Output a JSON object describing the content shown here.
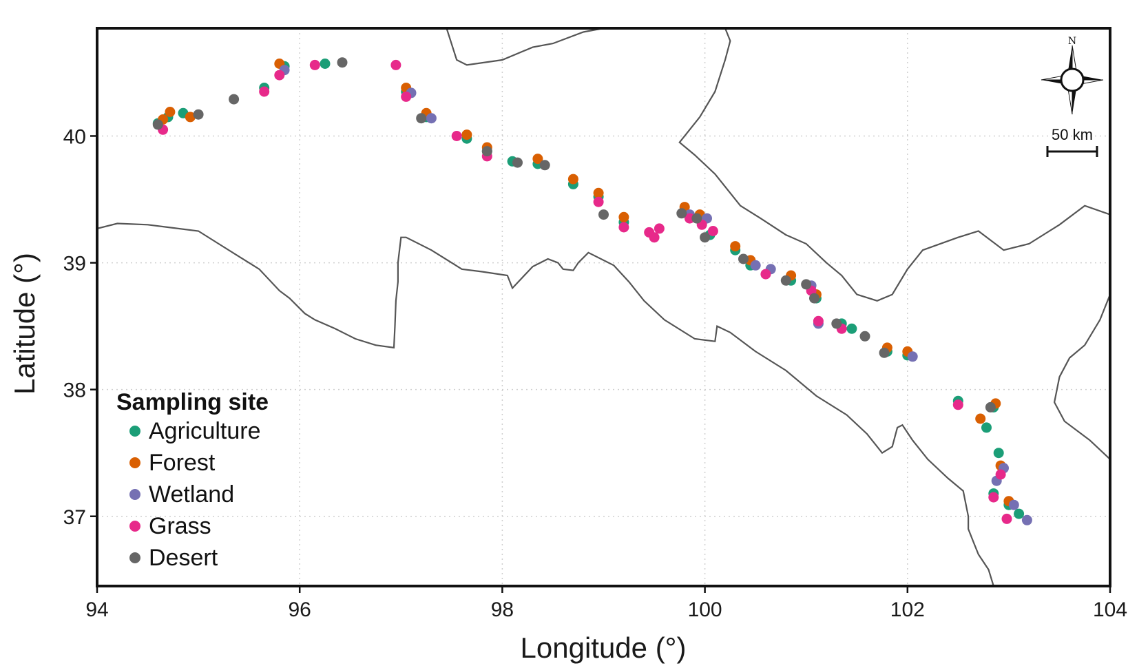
{
  "axes": {
    "xlabel": "Longitude (°)",
    "ylabel": "Latitude (°)",
    "xlim": [
      94,
      104
    ],
    "ylim": [
      36.45,
      40.85
    ],
    "xticks": [
      94,
      96,
      98,
      100,
      102,
      104
    ],
    "yticks": [
      37,
      38,
      39,
      40
    ],
    "grid": "on"
  },
  "legend": {
    "title": "Sampling site",
    "placement": "bottom-left",
    "items": [
      {
        "label": "Agriculture",
        "color": "#1b9e77"
      },
      {
        "label": "Forest",
        "color": "#d95f02"
      },
      {
        "label": "Wetland",
        "color": "#7570b3"
      },
      {
        "label": "Grass",
        "color": "#e7298a"
      },
      {
        "label": "Desert",
        "color": "#666666"
      }
    ]
  },
  "scale_bar": {
    "label": "50 km"
  },
  "north_arrow": {
    "label": "N",
    "icon": "compass-rose-icon"
  },
  "boundaries": [
    [
      [
        94.0,
        39.27
      ],
      [
        94.2,
        39.31
      ],
      [
        94.5,
        39.3
      ],
      [
        94.7,
        39.28
      ],
      [
        95.0,
        39.25
      ],
      [
        95.2,
        39.15
      ],
      [
        95.4,
        39.05
      ],
      [
        95.6,
        38.95
      ],
      [
        95.8,
        38.78
      ],
      [
        95.9,
        38.72
      ],
      [
        96.05,
        38.6
      ],
      [
        96.15,
        38.55
      ],
      [
        96.35,
        38.48
      ],
      [
        96.55,
        38.4
      ],
      [
        96.75,
        38.35
      ],
      [
        96.93,
        38.33
      ],
      [
        96.94,
        38.5
      ],
      [
        96.95,
        38.7
      ],
      [
        96.97,
        38.85
      ],
      [
        96.97,
        39.0
      ],
      [
        97.0,
        39.2
      ],
      [
        97.05,
        39.2
      ],
      [
        97.3,
        39.1
      ],
      [
        97.5,
        39.0
      ],
      [
        97.6,
        38.95
      ],
      [
        97.8,
        38.93
      ],
      [
        98.05,
        38.9
      ],
      [
        98.1,
        38.8
      ],
      [
        98.3,
        38.97
      ],
      [
        98.45,
        39.03
      ],
      [
        98.55,
        39.0
      ],
      [
        98.6,
        38.95
      ],
      [
        98.7,
        38.94
      ],
      [
        98.75,
        39.0
      ],
      [
        98.85,
        39.08
      ],
      [
        99.1,
        38.98
      ],
      [
        99.25,
        38.85
      ],
      [
        99.4,
        38.7
      ],
      [
        99.6,
        38.55
      ],
      [
        99.9,
        38.4
      ],
      [
        100.1,
        38.38
      ],
      [
        100.12,
        38.5
      ],
      [
        100.25,
        38.45
      ],
      [
        100.5,
        38.3
      ],
      [
        100.8,
        38.15
      ],
      [
        101.1,
        37.95
      ],
      [
        101.4,
        37.8
      ],
      [
        101.6,
        37.65
      ],
      [
        101.75,
        37.5
      ],
      [
        101.85,
        37.55
      ],
      [
        101.9,
        37.7
      ],
      [
        101.95,
        37.72
      ],
      [
        102.05,
        37.6
      ],
      [
        102.2,
        37.45
      ],
      [
        102.4,
        37.3
      ],
      [
        102.55,
        37.2
      ],
      [
        102.6,
        37.0
      ],
      [
        102.6,
        36.9
      ],
      [
        102.65,
        36.8
      ],
      [
        102.7,
        36.7
      ],
      [
        102.8,
        36.58
      ],
      [
        102.85,
        36.45
      ]
    ],
    [
      [
        97.45,
        40.85
      ],
      [
        97.55,
        40.6
      ],
      [
        97.65,
        40.56
      ],
      [
        98.0,
        40.6
      ],
      [
        98.3,
        40.7
      ],
      [
        98.5,
        40.73
      ],
      [
        98.8,
        40.82
      ],
      [
        99.0,
        40.85
      ]
    ],
    [
      [
        100.2,
        40.85
      ],
      [
        100.25,
        40.75
      ],
      [
        100.2,
        40.6
      ],
      [
        100.1,
        40.35
      ],
      [
        99.95,
        40.15
      ],
      [
        99.85,
        40.05
      ],
      [
        99.75,
        39.95
      ],
      [
        99.9,
        39.85
      ],
      [
        100.1,
        39.7
      ],
      [
        100.35,
        39.45
      ],
      [
        100.55,
        39.35
      ],
      [
        100.8,
        39.22
      ],
      [
        101.0,
        39.15
      ],
      [
        101.2,
        39.0
      ],
      [
        101.35,
        38.9
      ],
      [
        101.5,
        38.75
      ],
      [
        101.7,
        38.7
      ],
      [
        101.85,
        38.75
      ],
      [
        102.0,
        38.95
      ],
      [
        102.15,
        39.1
      ],
      [
        102.5,
        39.2
      ],
      [
        102.7,
        39.25
      ],
      [
        102.95,
        39.1
      ],
      [
        103.2,
        39.15
      ],
      [
        103.5,
        39.3
      ],
      [
        103.75,
        39.45
      ],
      [
        104.0,
        39.38
      ]
    ],
    [
      [
        104.0,
        37.45
      ],
      [
        103.8,
        37.6
      ],
      [
        103.55,
        37.75
      ],
      [
        103.45,
        37.9
      ],
      [
        103.5,
        38.1
      ],
      [
        103.6,
        38.25
      ],
      [
        103.75,
        38.35
      ],
      [
        103.9,
        38.55
      ],
      [
        104.0,
        38.75
      ]
    ]
  ],
  "chart_data": {
    "type": "scatter",
    "xlabel": "Longitude (°)",
    "ylabel": "Latitude (°)",
    "xlim": [
      94,
      104
    ],
    "ylim": [
      36.45,
      40.85
    ],
    "series": [
      {
        "name": "Agriculture",
        "color": "#1b9e77",
        "points": [
          [
            94.6,
            40.1
          ],
          [
            94.7,
            40.15
          ],
          [
            94.85,
            40.18
          ],
          [
            95.65,
            40.38
          ],
          [
            95.85,
            40.55
          ],
          [
            96.25,
            40.57
          ],
          [
            97.05,
            40.35
          ],
          [
            97.25,
            40.15
          ],
          [
            97.65,
            39.98
          ],
          [
            97.85,
            39.88
          ],
          [
            98.1,
            39.8
          ],
          [
            98.35,
            39.78
          ],
          [
            98.7,
            39.62
          ],
          [
            98.95,
            39.52
          ],
          [
            99.2,
            39.32
          ],
          [
            100.05,
            39.22
          ],
          [
            100.3,
            39.1
          ],
          [
            100.45,
            38.98
          ],
          [
            100.85,
            38.86
          ],
          [
            101.1,
            38.72
          ],
          [
            101.35,
            38.52
          ],
          [
            101.45,
            38.48
          ],
          [
            101.8,
            38.3
          ],
          [
            102.0,
            38.27
          ],
          [
            102.5,
            37.91
          ],
          [
            102.78,
            37.7
          ],
          [
            102.85,
            37.86
          ],
          [
            102.9,
            37.5
          ],
          [
            102.85,
            37.18
          ],
          [
            103.0,
            37.09
          ],
          [
            103.1,
            37.02
          ]
        ]
      },
      {
        "name": "Forest",
        "color": "#d95f02",
        "points": [
          [
            94.65,
            40.13
          ],
          [
            94.72,
            40.19
          ],
          [
            94.92,
            40.15
          ],
          [
            95.8,
            40.57
          ],
          [
            97.05,
            40.38
          ],
          [
            97.25,
            40.18
          ],
          [
            97.65,
            40.01
          ],
          [
            97.85,
            39.91
          ],
          [
            98.35,
            39.82
          ],
          [
            98.7,
            39.66
          ],
          [
            98.95,
            39.55
          ],
          [
            99.2,
            39.36
          ],
          [
            99.8,
            39.44
          ],
          [
            99.95,
            39.38
          ],
          [
            100.3,
            39.13
          ],
          [
            100.45,
            39.02
          ],
          [
            100.85,
            38.9
          ],
          [
            101.1,
            38.75
          ],
          [
            101.8,
            38.33
          ],
          [
            102.0,
            38.3
          ],
          [
            102.72,
            37.77
          ],
          [
            102.87,
            37.89
          ],
          [
            102.92,
            37.4
          ],
          [
            103.0,
            37.12
          ]
        ]
      },
      {
        "name": "Wetland",
        "color": "#7570b3",
        "points": [
          [
            95.85,
            40.52
          ],
          [
            97.1,
            40.34
          ],
          [
            97.3,
            40.14
          ],
          [
            99.85,
            39.38
          ],
          [
            100.02,
            39.35
          ],
          [
            100.5,
            38.98
          ],
          [
            100.65,
            38.95
          ],
          [
            101.05,
            38.82
          ],
          [
            101.12,
            38.52
          ],
          [
            102.05,
            38.26
          ],
          [
            102.88,
            37.28
          ],
          [
            102.95,
            37.38
          ],
          [
            103.05,
            37.09
          ],
          [
            103.18,
            36.97
          ]
        ]
      },
      {
        "name": "Grass",
        "color": "#e7298a",
        "points": [
          [
            94.65,
            40.05
          ],
          [
            95.65,
            40.35
          ],
          [
            95.8,
            40.48
          ],
          [
            96.15,
            40.56
          ],
          [
            96.95,
            40.56
          ],
          [
            97.05,
            40.31
          ],
          [
            97.55,
            40.0
          ],
          [
            97.85,
            39.84
          ],
          [
            98.95,
            39.48
          ],
          [
            99.2,
            39.28
          ],
          [
            99.45,
            39.24
          ],
          [
            99.5,
            39.2
          ],
          [
            99.55,
            39.27
          ],
          [
            99.85,
            39.35
          ],
          [
            99.97,
            39.3
          ],
          [
            100.08,
            39.25
          ],
          [
            100.6,
            38.91
          ],
          [
            101.05,
            38.78
          ],
          [
            101.12,
            38.54
          ],
          [
            101.35,
            38.48
          ],
          [
            102.5,
            37.88
          ],
          [
            102.85,
            37.15
          ],
          [
            102.92,
            37.33
          ],
          [
            102.98,
            36.98
          ]
        ]
      },
      {
        "name": "Desert",
        "color": "#666666",
        "points": [
          [
            94.6,
            40.09
          ],
          [
            95.0,
            40.17
          ],
          [
            95.35,
            40.29
          ],
          [
            96.42,
            40.58
          ],
          [
            97.2,
            40.14
          ],
          [
            97.85,
            39.88
          ],
          [
            98.15,
            39.79
          ],
          [
            98.42,
            39.77
          ],
          [
            99.0,
            39.38
          ],
          [
            99.77,
            39.39
          ],
          [
            99.92,
            39.35
          ],
          [
            100.0,
            39.2
          ],
          [
            100.38,
            39.03
          ],
          [
            100.8,
            38.86
          ],
          [
            101.0,
            38.83
          ],
          [
            101.08,
            38.72
          ],
          [
            101.3,
            38.52
          ],
          [
            101.58,
            38.42
          ],
          [
            101.77,
            38.29
          ],
          [
            102.82,
            37.86
          ]
        ]
      }
    ]
  }
}
